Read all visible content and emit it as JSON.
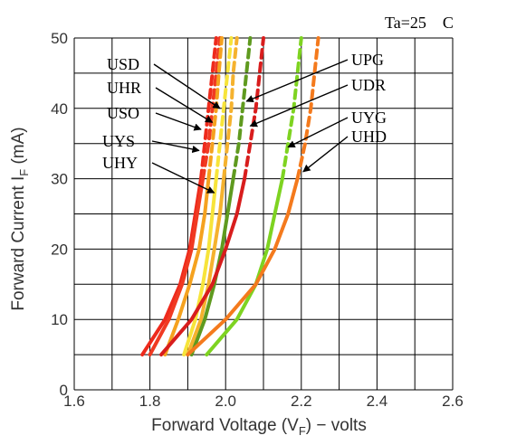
{
  "chart_data": {
    "type": "line",
    "title": "",
    "annotation": "Ta=25　C",
    "xlabel": "Forward Voltage (V",
    "xlabel_sub": "F",
    "xlabel_suffix": ") − volts",
    "ylabel": "Forward Current I",
    "ylabel_sub": "F",
    "ylabel_suffix": " (mA)",
    "xlim": [
      1.6,
      2.6
    ],
    "ylim": [
      0,
      50
    ],
    "x_ticks": [
      "1.6",
      "1.8",
      "2.0",
      "2.2",
      "2.4",
      "2.6"
    ],
    "y_ticks": [
      "0",
      "10",
      "20",
      "30",
      "40",
      "50"
    ],
    "grid": true,
    "series": [
      {
        "name": "USD",
        "color": "#ee2a1c",
        "points": [
          [
            1.78,
            5
          ],
          [
            1.84,
            10
          ],
          [
            1.88,
            15
          ],
          [
            1.905,
            20
          ],
          [
            1.92,
            25
          ],
          [
            1.935,
            30
          ],
          [
            1.945,
            35
          ],
          [
            1.955,
            40
          ],
          [
            1.965,
            45
          ],
          [
            1.975,
            50
          ]
        ]
      },
      {
        "name": "UHR",
        "color": "#f03a22",
        "points": [
          [
            1.8,
            5
          ],
          [
            1.85,
            10
          ],
          [
            1.885,
            15
          ],
          [
            1.91,
            20
          ],
          [
            1.925,
            25
          ],
          [
            1.94,
            30
          ],
          [
            1.955,
            35
          ],
          [
            1.965,
            40
          ],
          [
            1.975,
            45
          ],
          [
            1.985,
            50
          ]
        ]
      },
      {
        "name": "USO",
        "color": "#f5a21f",
        "points": [
          [
            1.84,
            5
          ],
          [
            1.875,
            10
          ],
          [
            1.905,
            15
          ],
          [
            1.93,
            20
          ],
          [
            1.945,
            25
          ],
          [
            1.955,
            30
          ],
          [
            1.965,
            35
          ],
          [
            1.975,
            40
          ],
          [
            1.982,
            45
          ],
          [
            1.99,
            50
          ]
        ]
      },
      {
        "name": "UYS",
        "color": "#f7e43a",
        "points": [
          [
            1.89,
            5
          ],
          [
            1.92,
            10
          ],
          [
            1.94,
            15
          ],
          [
            1.955,
            20
          ],
          [
            1.965,
            25
          ],
          [
            1.975,
            30
          ],
          [
            1.985,
            35
          ],
          [
            1.995,
            40
          ],
          [
            2.005,
            45
          ],
          [
            2.015,
            50
          ]
        ]
      },
      {
        "name": "UHY",
        "color": "#f5b22e",
        "points": [
          [
            1.9,
            5
          ],
          [
            1.935,
            10
          ],
          [
            1.955,
            15
          ],
          [
            1.97,
            20
          ],
          [
            1.985,
            25
          ],
          [
            1.995,
            30
          ],
          [
            2.005,
            35
          ],
          [
            2.015,
            40
          ],
          [
            2.02,
            45
          ],
          [
            2.03,
            50
          ]
        ]
      },
      {
        "name": "UPG",
        "color": "#5f9a1f",
        "points": [
          [
            1.91,
            5
          ],
          [
            1.945,
            10
          ],
          [
            1.97,
            15
          ],
          [
            1.99,
            20
          ],
          [
            2.005,
            25
          ],
          [
            2.02,
            30
          ],
          [
            2.035,
            35
          ],
          [
            2.045,
            40
          ],
          [
            2.055,
            45
          ],
          [
            2.065,
            50
          ]
        ]
      },
      {
        "name": "UDR",
        "color": "#d81d1d",
        "points": [
          [
            1.83,
            5
          ],
          [
            1.91,
            10
          ],
          [
            1.965,
            15
          ],
          [
            2.0,
            20
          ],
          [
            2.03,
            25
          ],
          [
            2.05,
            30
          ],
          [
            2.065,
            35
          ],
          [
            2.08,
            40
          ],
          [
            2.09,
            45
          ],
          [
            2.1,
            50
          ]
        ]
      },
      {
        "name": "UYG",
        "color": "#7ed321",
        "points": [
          [
            1.95,
            5
          ],
          [
            2.03,
            10
          ],
          [
            2.08,
            15
          ],
          [
            2.11,
            20
          ],
          [
            2.13,
            25
          ],
          [
            2.15,
            30
          ],
          [
            2.165,
            35
          ],
          [
            2.18,
            40
          ],
          [
            2.19,
            45
          ],
          [
            2.2,
            50
          ]
        ]
      },
      {
        "name": "UHD",
        "color": "#f47a1d",
        "points": [
          [
            1.9,
            5
          ],
          [
            2.0,
            10
          ],
          [
            2.08,
            15
          ],
          [
            2.13,
            20
          ],
          [
            2.165,
            25
          ],
          [
            2.19,
            30
          ],
          [
            2.21,
            35
          ],
          [
            2.225,
            40
          ],
          [
            2.235,
            45
          ],
          [
            2.245,
            50
          ]
        ]
      }
    ]
  }
}
